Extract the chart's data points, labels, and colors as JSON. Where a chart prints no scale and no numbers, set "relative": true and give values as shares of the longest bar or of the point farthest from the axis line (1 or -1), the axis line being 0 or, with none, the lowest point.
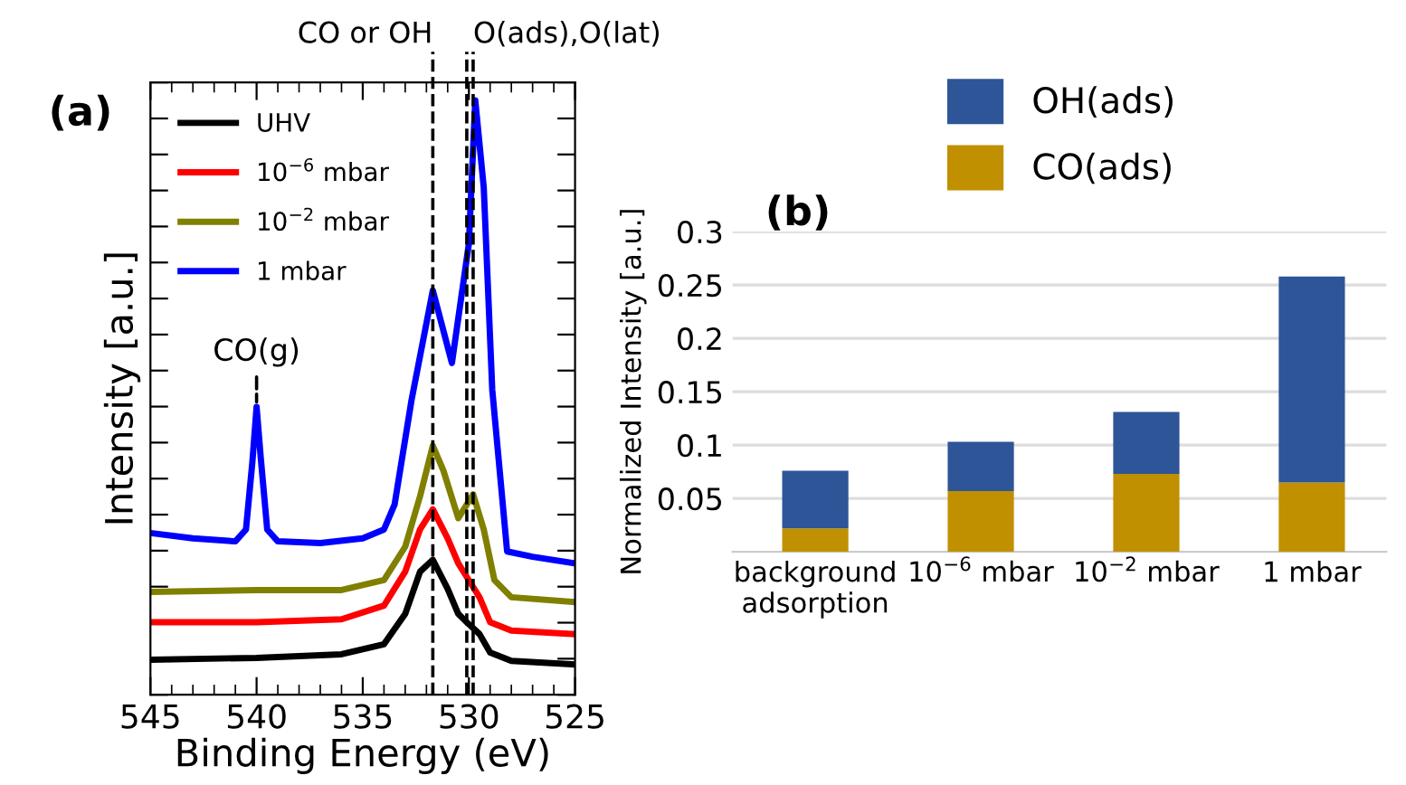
{
  "chart_data": [
    {
      "type": "line",
      "title": "(a)",
      "xlabel": "Binding Energy (eV)",
      "ylabel": "Intensity [a.u.]",
      "relative": true,
      "xlim": [
        545,
        525
      ],
      "xticks": [
        545,
        540,
        535,
        530,
        525
      ],
      "tick_labels": "x",
      "legend": "top left",
      "line_style": "solid",
      "series": [
        {
          "name": "UHV",
          "color": "#000000",
          "x": [
            545,
            540,
            536,
            534,
            533,
            532.3,
            531.7,
            531,
            530.5,
            530.1,
            529.5,
            529,
            528,
            525
          ],
          "values": [
            0.059,
            0.062,
            0.068,
            0.085,
            0.136,
            0.207,
            0.227,
            0.178,
            0.136,
            0.122,
            0.102,
            0.071,
            0.057,
            0.051
          ]
        },
        {
          "name": "10$^{−6}$ mbar",
          "color": "#ff0000",
          "x": [
            545,
            540,
            536,
            534,
            533,
            532.3,
            531.7,
            531,
            530.5,
            530.1,
            529.5,
            529,
            528,
            525
          ],
          "values": [
            0.122,
            0.122,
            0.127,
            0.15,
            0.207,
            0.278,
            0.312,
            0.263,
            0.221,
            0.198,
            0.164,
            0.122,
            0.108,
            0.102
          ]
        },
        {
          "name": "10$^{−2}$ mbar",
          "color": "#808000",
          "x": [
            545,
            540,
            536,
            534,
            533,
            532.3,
            531.7,
            531.2,
            530.5,
            529.8,
            529.3,
            528.8,
            528,
            525
          ],
          "values": [
            0.173,
            0.176,
            0.176,
            0.193,
            0.249,
            0.334,
            0.419,
            0.377,
            0.297,
            0.337,
            0.278,
            0.193,
            0.164,
            0.156
          ]
        },
        {
          "name": "1 mbar",
          "color": "#0000ff",
          "x": [
            545,
            543,
            541,
            540.5,
            540.2,
            540,
            539.8,
            539.5,
            539,
            537,
            535,
            534,
            533.5,
            532.7,
            531.7,
            530.8,
            530,
            529.7,
            529.3,
            528.9,
            528.2,
            527,
            525
          ],
          "values": [
            0.272,
            0.263,
            0.258,
            0.278,
            0.391,
            0.484,
            0.397,
            0.278,
            0.258,
            0.255,
            0.263,
            0.278,
            0.32,
            0.496,
            0.68,
            0.558,
            0.759,
            1.0,
            0.853,
            0.513,
            0.241,
            0.232,
            0.221
          ]
        }
      ],
      "ref_lines": [
        {
          "axis": "x",
          "value": 531.7,
          "label": "CO or OH",
          "line_style": "dashed",
          "color": "#000000"
        },
        {
          "axis": "x",
          "value": 529.8,
          "label": "O(ads),O(lat)",
          "line_style": "dashed",
          "color": "#000000"
        },
        {
          "axis": "x",
          "value": 530.1,
          "label": null,
          "line_style": "dashed",
          "color": "#000000"
        }
      ],
      "annotations": [
        {
          "text": "CO(g)",
          "x": 540,
          "y": 0.484
        }
      ]
    },
    {
      "type": "bar",
      "title": "(b)",
      "ylabel": "Normalized Intensity [a.u.]",
      "stacked": true,
      "categories": [
        "background\nadsorption",
        "10$^{−6}$ mbar",
        "10$^{−2}$ mbar",
        "1 mbar"
      ],
      "ylim": [
        0,
        0.3
      ],
      "yticks": [
        0.05,
        0.1,
        0.15,
        0.2,
        0.25,
        0.3
      ],
      "grid": "y",
      "legend": "top",
      "series": [
        {
          "name": "CO(ads)",
          "color": "#c09000",
          "values": [
            0.022,
            0.057,
            0.073,
            0.065
          ]
        },
        {
          "name": "OH(ads)",
          "color": "#2e5597",
          "values": [
            0.054,
            0.046,
            0.058,
            0.193
          ]
        }
      ]
    }
  ]
}
